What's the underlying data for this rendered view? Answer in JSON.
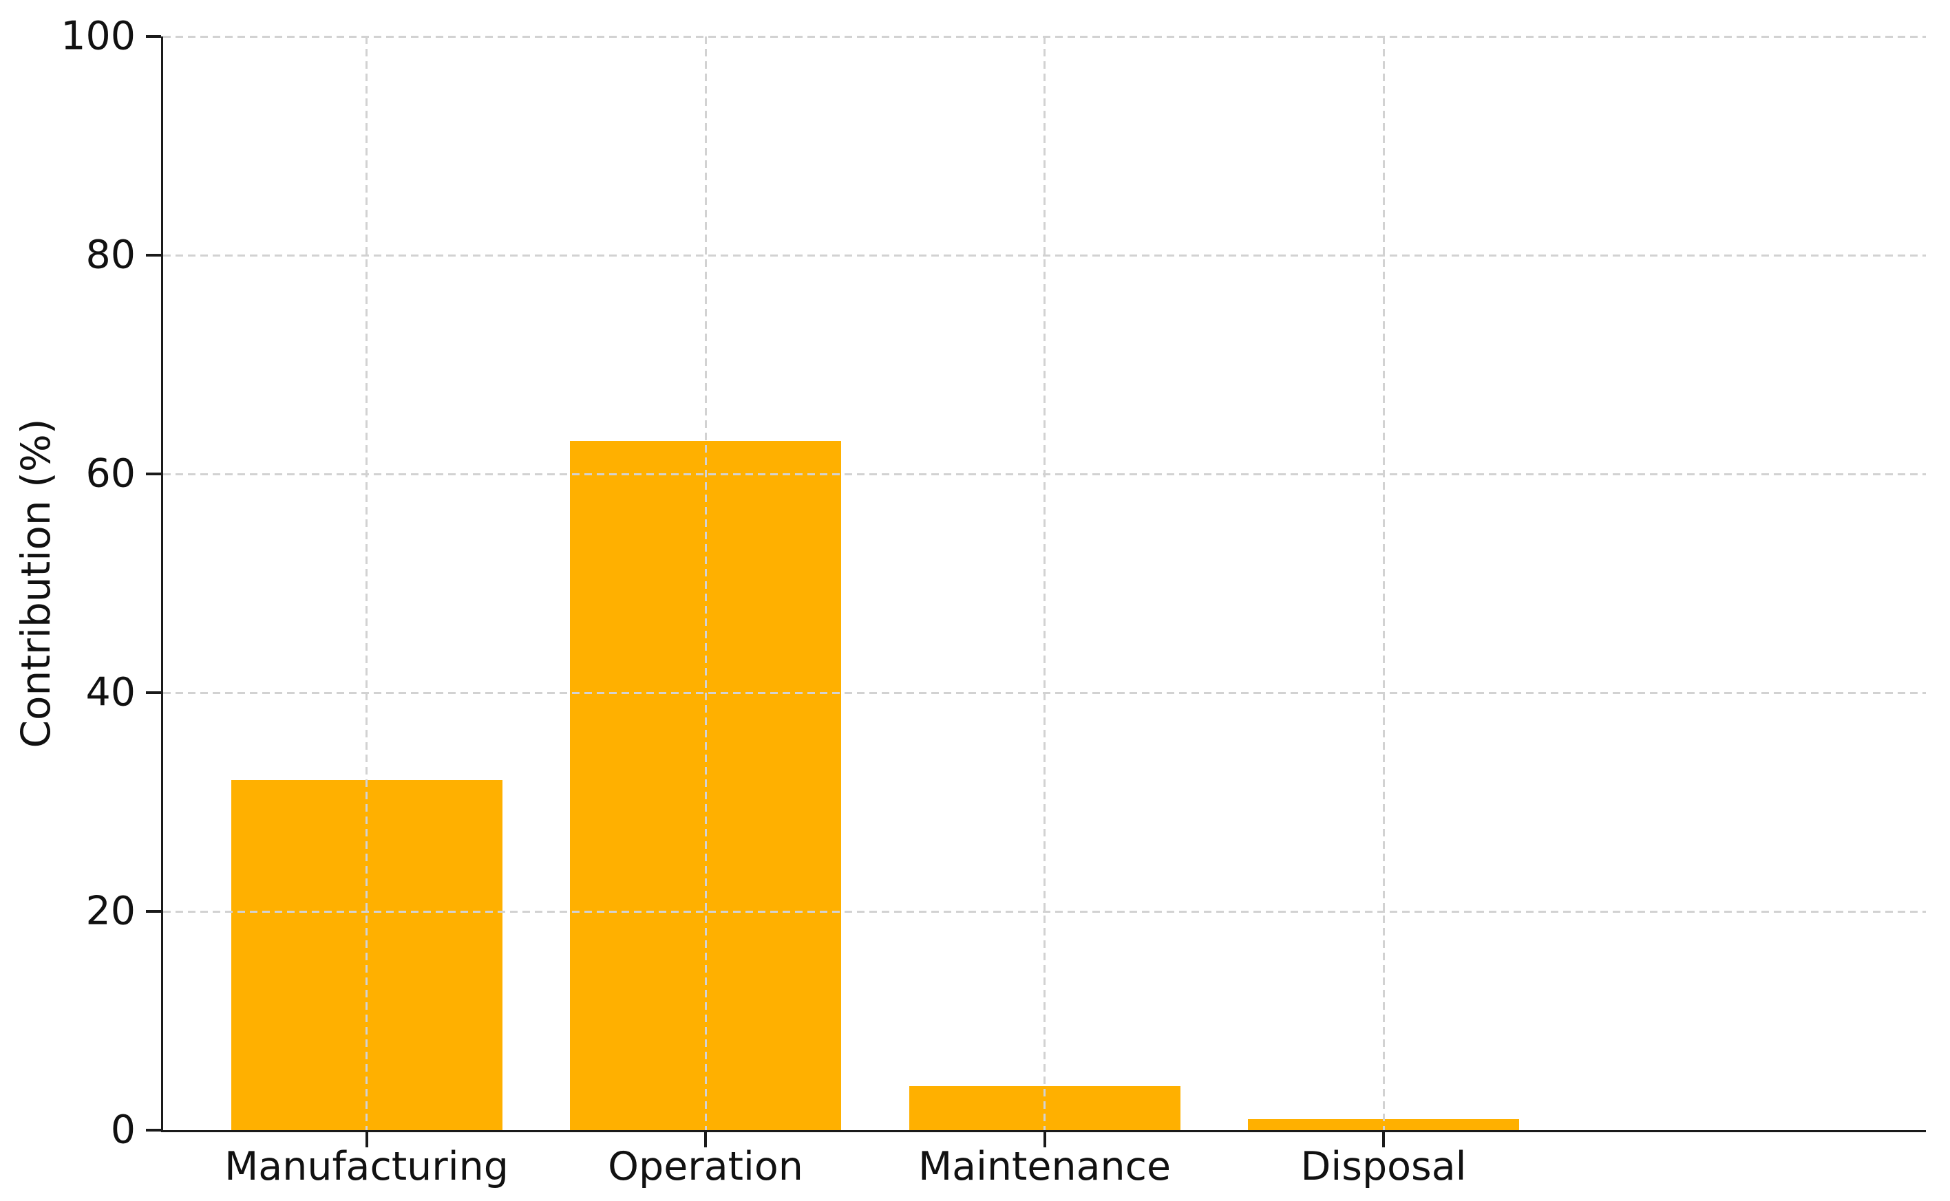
{
  "chart_data": {
    "type": "bar",
    "title": "",
    "xlabel": "",
    "ylabel": "Contribution (%)",
    "categories": [
      "Manufacturing",
      "Operation",
      "Maintenance",
      "Disposal"
    ],
    "values": [
      32,
      63,
      4,
      1
    ],
    "ylim": [
      0,
      100
    ],
    "yticks": [
      0,
      20,
      40,
      60,
      80,
      100
    ],
    "bar_color": "#FFB000",
    "grid": {
      "horizontal": true,
      "vertical": true,
      "style": "dashed",
      "color": "#d2d2d2",
      "above_bars": true
    },
    "legend": "none",
    "background_color": "#ffffff",
    "spine_color": "#1a1a1a"
  }
}
